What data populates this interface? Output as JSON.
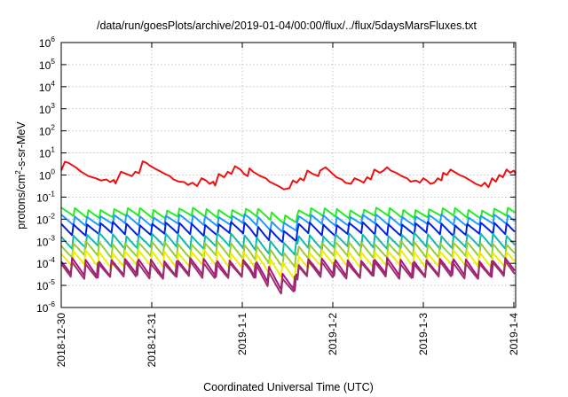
{
  "chart_data": {
    "type": "line",
    "title": "/data/run/goesPlots/archive/2019-01-04/00:00/flux/../flux/5daysMarsFluxes.txt",
    "xlabel": "Coordinated Universal Time (UTC)",
    "ylabel_prefix": "protons/cm",
    "ylabel_sup": "2",
    "ylabel_suffix": "-s-sr-MeV",
    "y_scale": "log",
    "ylim_exponents": [
      -6,
      6
    ],
    "y_ticks": [
      {
        "base": "10",
        "exp": "6"
      },
      {
        "base": "10",
        "exp": "5"
      },
      {
        "base": "10",
        "exp": "4"
      },
      {
        "base": "10",
        "exp": "3"
      },
      {
        "base": "10",
        "exp": "2"
      },
      {
        "base": "10",
        "exp": "1"
      },
      {
        "base": "10",
        "exp": "0"
      },
      {
        "base": "10",
        "exp": "-1"
      },
      {
        "base": "10",
        "exp": "-2"
      },
      {
        "base": "10",
        "exp": "-3"
      },
      {
        "base": "10",
        "exp": "-4"
      },
      {
        "base": "10",
        "exp": "-5"
      },
      {
        "base": "10",
        "exp": "-6"
      }
    ],
    "x_unit": "days since 2018-12-30",
    "xlim_days": [
      0,
      5.02
    ],
    "x_ticks": [
      "2018-12-30",
      "2018-12-31",
      "2019-1-1",
      "2019-1-2",
      "2019-1-3",
      "2019-1-4"
    ],
    "grid": true,
    "series": [
      {
        "color": "#ee1111",
        "values": [
          [
            0.0,
            0.2
          ],
          [
            0.04,
            0.6
          ],
          [
            0.08,
            0.55
          ],
          [
            0.12,
            0.45
          ],
          [
            0.16,
            0.35
          ],
          [
            0.22,
            0.15
          ],
          [
            0.3,
            -0.05
          ],
          [
            0.38,
            -0.15
          ],
          [
            0.44,
            -0.25
          ],
          [
            0.5,
            -0.2
          ],
          [
            0.54,
            -0.32
          ],
          [
            0.58,
            -0.22
          ],
          [
            0.6,
            -0.38
          ],
          [
            0.66,
            0.15
          ],
          [
            0.72,
            0.05
          ],
          [
            0.78,
            -0.05
          ],
          [
            0.82,
            0.15
          ],
          [
            0.86,
            0.08
          ],
          [
            0.9,
            0.62
          ],
          [
            0.94,
            0.55
          ],
          [
            0.98,
            0.42
          ],
          [
            1.04,
            0.28
          ],
          [
            1.1,
            0.15
          ],
          [
            1.16,
            0.02
          ],
          [
            1.2,
            -0.05
          ],
          [
            1.24,
            -0.2
          ],
          [
            1.3,
            -0.3
          ],
          [
            1.36,
            -0.32
          ],
          [
            1.4,
            -0.45
          ],
          [
            1.45,
            -0.35
          ],
          [
            1.5,
            -0.5
          ],
          [
            1.55,
            -0.15
          ],
          [
            1.6,
            -0.25
          ],
          [
            1.64,
            -0.4
          ],
          [
            1.68,
            -0.3
          ],
          [
            1.7,
            -0.48
          ],
          [
            1.74,
            0.05
          ],
          [
            1.8,
            -0.1
          ],
          [
            1.84,
            0.15
          ],
          [
            1.88,
            0.05
          ],
          [
            1.92,
            0.4
          ],
          [
            1.98,
            0.25
          ],
          [
            2.02,
            0.05
          ],
          [
            2.06,
            -0.05
          ],
          [
            2.08,
            0.3
          ],
          [
            2.12,
            0.15
          ],
          [
            2.16,
            0.05
          ],
          [
            2.2,
            -0.05
          ],
          [
            2.26,
            -0.15
          ],
          [
            2.3,
            -0.3
          ],
          [
            2.4,
            -0.5
          ],
          [
            2.46,
            -0.65
          ],
          [
            2.52,
            -0.6
          ],
          [
            2.56,
            -0.25
          ],
          [
            2.6,
            -0.35
          ],
          [
            2.64,
            -0.15
          ],
          [
            2.68,
            -0.25
          ],
          [
            2.72,
            0.2
          ],
          [
            2.78,
            0.05
          ],
          [
            2.84,
            -0.05
          ],
          [
            2.86,
            0.2
          ],
          [
            2.92,
            0.35
          ],
          [
            2.96,
            0.2
          ],
          [
            3.0,
            0.05
          ],
          [
            3.04,
            -0.1
          ],
          [
            3.1,
            -0.2
          ],
          [
            3.14,
            -0.35
          ],
          [
            3.2,
            -0.4
          ],
          [
            3.24,
            -0.15
          ],
          [
            3.3,
            -0.25
          ],
          [
            3.34,
            -0.35
          ],
          [
            3.38,
            -0.1
          ],
          [
            3.42,
            -0.2
          ],
          [
            3.46,
            0.25
          ],
          [
            3.52,
            0.1
          ],
          [
            3.56,
            0.2
          ],
          [
            3.6,
            0.35
          ],
          [
            3.64,
            0.2
          ],
          [
            3.7,
            0.1
          ],
          [
            3.76,
            -0.05
          ],
          [
            3.82,
            -0.15
          ],
          [
            3.86,
            -0.3
          ],
          [
            3.92,
            -0.25
          ],
          [
            3.96,
            -0.35
          ],
          [
            4.0,
            -0.15
          ],
          [
            4.04,
            -0.25
          ],
          [
            4.08,
            -0.4
          ],
          [
            4.12,
            -0.35
          ],
          [
            4.16,
            -0.15
          ],
          [
            4.2,
            -0.25
          ],
          [
            4.22,
            0.1
          ],
          [
            4.26,
            0.0
          ],
          [
            4.3,
            0.25
          ],
          [
            4.36,
            0.1
          ],
          [
            4.4,
            0.0
          ],
          [
            4.46,
            -0.1
          ],
          [
            4.52,
            -0.25
          ],
          [
            4.58,
            -0.4
          ],
          [
            4.64,
            -0.5
          ],
          [
            4.68,
            -0.35
          ],
          [
            4.72,
            -0.55
          ],
          [
            4.76,
            -0.15
          ],
          [
            4.8,
            -0.3
          ],
          [
            4.84,
            0.0
          ],
          [
            4.88,
            -0.1
          ],
          [
            4.92,
            0.25
          ],
          [
            4.96,
            0.1
          ],
          [
            5.0,
            0.2
          ],
          [
            5.02,
            0.05
          ]
        ]
      },
      {
        "color": "#22ee22",
        "mean": -1.72,
        "amp": 0.4
      },
      {
        "color": "#2299ff",
        "mean": -2.05,
        "amp": 0.45
      },
      {
        "color": "#0022dd",
        "mean": -2.45,
        "amp": 0.55
      },
      {
        "color": "#11bbaa",
        "mean": -3.0,
        "amp": 0.65
      },
      {
        "color": "#99cc33",
        "mean": -3.4,
        "amp": 0.7
      },
      {
        "color": "#eeee00",
        "mean": -3.8,
        "amp": 0.75
      },
      {
        "color": "#aa1188",
        "mean": -4.2,
        "amp": 0.8
      },
      {
        "color": "#993366",
        "mean": -4.3,
        "amp": 0.75
      }
    ]
  }
}
